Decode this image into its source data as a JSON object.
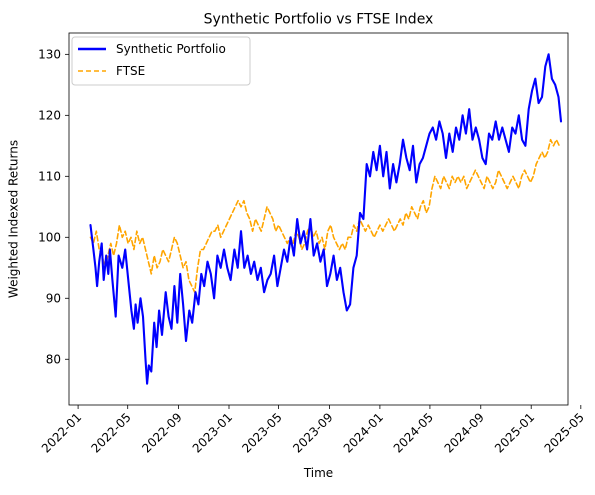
{
  "chart_data": {
    "type": "line",
    "title": "Synthetic Portfolio vs FTSE Index",
    "xlabel": "Time",
    "ylabel": "Weighted Indexed Returns",
    "xlim": [
      "2021-12-10",
      "2025-03-31"
    ],
    "ylim": [
      72.5,
      133.5
    ],
    "x_ticks": [
      "2022-01",
      "2022-05",
      "2022-09",
      "2023-01",
      "2023-05",
      "2023-09",
      "2024-01",
      "2024-05",
      "2024-09",
      "2025-01",
      "2025-05"
    ],
    "y_ticks": [
      80,
      90,
      100,
      110,
      120,
      130
    ],
    "legend_position": "top-left",
    "grid": false,
    "series": [
      {
        "name": "Synthetic Portfolio",
        "color": "#0000ff",
        "style": "solid",
        "x": [
          "2022-01-31",
          "2022-02-07",
          "2022-02-12",
          "2022-02-16",
          "2022-02-21",
          "2022-02-27",
          "2022-03-04",
          "2022-03-10",
          "2022-03-15",
          "2022-03-19",
          "2022-03-25",
          "2022-04-02",
          "2022-04-09",
          "2022-04-18",
          "2022-04-25",
          "2022-05-04",
          "2022-05-10",
          "2022-05-16",
          "2022-05-20",
          "2022-05-25",
          "2022-06-01",
          "2022-06-07",
          "2022-06-13",
          "2022-06-17",
          "2022-06-21",
          "2022-06-27",
          "2022-07-04",
          "2022-07-10",
          "2022-07-16",
          "2022-07-23",
          "2022-08-01",
          "2022-08-08",
          "2022-08-15",
          "2022-08-22",
          "2022-08-29",
          "2022-09-05",
          "2022-09-12",
          "2022-09-19",
          "2022-09-27",
          "2022-10-04",
          "2022-10-12",
          "2022-10-19",
          "2022-10-26",
          "2022-11-02",
          "2022-11-10",
          "2022-11-18",
          "2022-11-26",
          "2022-12-04",
          "2022-12-12",
          "2022-12-20",
          "2022-12-28",
          "2023-01-05",
          "2023-01-14",
          "2023-01-22",
          "2023-01-30",
          "2023-02-07",
          "2023-02-15",
          "2023-02-23",
          "2023-03-03",
          "2023-03-11",
          "2023-03-19",
          "2023-03-27",
          "2023-04-04",
          "2023-04-12",
          "2023-04-20",
          "2023-04-28",
          "2023-05-06",
          "2023-05-14",
          "2023-05-22",
          "2023-05-30",
          "2023-06-07",
          "2023-06-15",
          "2023-06-23",
          "2023-07-01",
          "2023-07-09",
          "2023-07-17",
          "2023-07-25",
          "2023-08-02",
          "2023-08-10",
          "2023-08-18",
          "2023-08-26",
          "2023-09-03",
          "2023-09-11",
          "2023-09-19",
          "2023-09-27",
          "2023-10-05",
          "2023-10-13",
          "2023-10-21",
          "2023-10-29",
          "2023-11-06",
          "2023-11-14",
          "2023-11-22",
          "2023-11-30",
          "2023-12-08",
          "2023-12-16",
          "2023-12-24",
          "2024-01-01",
          "2024-01-09",
          "2024-01-17",
          "2024-01-25",
          "2024-02-02",
          "2024-02-10",
          "2024-02-18",
          "2024-02-26",
          "2024-03-05",
          "2024-03-13",
          "2024-03-21",
          "2024-03-29",
          "2024-04-06",
          "2024-04-14",
          "2024-04-22",
          "2024-04-30",
          "2024-05-08",
          "2024-05-16",
          "2024-05-24",
          "2024-06-01",
          "2024-06-09",
          "2024-06-17",
          "2024-06-25",
          "2024-07-03",
          "2024-07-11",
          "2024-07-19",
          "2024-07-27",
          "2024-08-04",
          "2024-08-12",
          "2024-08-20",
          "2024-08-28",
          "2024-09-05",
          "2024-09-13",
          "2024-09-21",
          "2024-09-29",
          "2024-10-07",
          "2024-10-15",
          "2024-10-23",
          "2024-10-31",
          "2024-11-08",
          "2024-11-16",
          "2024-11-24",
          "2024-12-02",
          "2024-12-10",
          "2024-12-18",
          "2024-12-26",
          "2025-01-03",
          "2025-01-11",
          "2025-01-19",
          "2025-01-27",
          "2025-02-04",
          "2025-02-12",
          "2025-02-20",
          "2025-02-28",
          "2025-03-08",
          "2025-03-14"
        ],
        "y": [
          102,
          98,
          95,
          92,
          96,
          99,
          93,
          97,
          94,
          98,
          93,
          87,
          97,
          95,
          98,
          92,
          88,
          85,
          89,
          86,
          90,
          87,
          80,
          76,
          79,
          78,
          86,
          82,
          88,
          84,
          91,
          87,
          85,
          92,
          86,
          94,
          89,
          83,
          88,
          86,
          91,
          89,
          94,
          92,
          96,
          94,
          90,
          97,
          95,
          98,
          95,
          93,
          98,
          95,
          101,
          95,
          97,
          94,
          96,
          93,
          95,
          91,
          93,
          94,
          97,
          92,
          95,
          98,
          96,
          100,
          97,
          103,
          99,
          101,
          98,
          103,
          97,
          99,
          96,
          98,
          92,
          94,
          97,
          93,
          95,
          91,
          88,
          89,
          95,
          97,
          104,
          103,
          112,
          110,
          114,
          111,
          115,
          110,
          114,
          108,
          112,
          109,
          112,
          116,
          113,
          111,
          115,
          109,
          112,
          113,
          115,
          117,
          118,
          116,
          119,
          117,
          113,
          117,
          114,
          118,
          116,
          120,
          117,
          121,
          116,
          118,
          116,
          113,
          112,
          117,
          116,
          119,
          116,
          118,
          116,
          114,
          118,
          117,
          120,
          116,
          115,
          121,
          124,
          126,
          122,
          123,
          128,
          130,
          126,
          125,
          123,
          119
        ]
      },
      {
        "name": "FTSE",
        "color": "#ffa500",
        "style": "dashed",
        "x": [
          "2022-01-31",
          "2022-02-07",
          "2022-02-14",
          "2022-02-21",
          "2022-02-28",
          "2022-03-07",
          "2022-03-14",
          "2022-03-21",
          "2022-03-28",
          "2022-04-04",
          "2022-04-11",
          "2022-04-18",
          "2022-04-25",
          "2022-05-02",
          "2022-05-09",
          "2022-05-16",
          "2022-05-23",
          "2022-05-30",
          "2022-06-06",
          "2022-06-13",
          "2022-06-20",
          "2022-06-27",
          "2022-07-04",
          "2022-07-11",
          "2022-07-18",
          "2022-07-25",
          "2022-08-01",
          "2022-08-08",
          "2022-08-15",
          "2022-08-22",
          "2022-08-29",
          "2022-09-05",
          "2022-09-12",
          "2022-09-19",
          "2022-09-26",
          "2022-10-03",
          "2022-10-10",
          "2022-10-17",
          "2022-10-24",
          "2022-10-31",
          "2022-11-07",
          "2022-11-14",
          "2022-11-21",
          "2022-11-28",
          "2022-12-05",
          "2022-12-12",
          "2022-12-19",
          "2022-12-26",
          "2023-01-02",
          "2023-01-09",
          "2023-01-16",
          "2023-01-23",
          "2023-01-30",
          "2023-02-06",
          "2023-02-13",
          "2023-02-20",
          "2023-02-27",
          "2023-03-06",
          "2023-03-13",
          "2023-03-20",
          "2023-03-27",
          "2023-04-03",
          "2023-04-10",
          "2023-04-17",
          "2023-04-24",
          "2023-05-01",
          "2023-05-08",
          "2023-05-15",
          "2023-05-22",
          "2023-05-29",
          "2023-06-05",
          "2023-06-12",
          "2023-06-19",
          "2023-06-26",
          "2023-07-03",
          "2023-07-10",
          "2023-07-17",
          "2023-07-24",
          "2023-07-31",
          "2023-08-07",
          "2023-08-14",
          "2023-08-21",
          "2023-08-28",
          "2023-09-04",
          "2023-09-11",
          "2023-09-18",
          "2023-09-25",
          "2023-10-02",
          "2023-10-09",
          "2023-10-16",
          "2023-10-23",
          "2023-10-30",
          "2023-11-06",
          "2023-11-13",
          "2023-11-20",
          "2023-11-27",
          "2023-12-04",
          "2023-12-11",
          "2023-12-18",
          "2023-12-25",
          "2024-01-01",
          "2024-01-08",
          "2024-01-15",
          "2024-01-22",
          "2024-01-29",
          "2024-02-05",
          "2024-02-12",
          "2024-02-19",
          "2024-02-26",
          "2024-03-04",
          "2024-03-11",
          "2024-03-18",
          "2024-03-25",
          "2024-04-01",
          "2024-04-08",
          "2024-04-15",
          "2024-04-22",
          "2024-04-29",
          "2024-05-06",
          "2024-05-13",
          "2024-05-20",
          "2024-05-27",
          "2024-06-03",
          "2024-06-10",
          "2024-06-17",
          "2024-06-24",
          "2024-07-01",
          "2024-07-08",
          "2024-07-15",
          "2024-07-22",
          "2024-07-29",
          "2024-08-05",
          "2024-08-12",
          "2024-08-19",
          "2024-08-26",
          "2024-09-02",
          "2024-09-09",
          "2024-09-16",
          "2024-09-23",
          "2024-09-30",
          "2024-10-07",
          "2024-10-14",
          "2024-10-21",
          "2024-10-28",
          "2024-11-04",
          "2024-11-11",
          "2024-11-18",
          "2024-11-25",
          "2024-12-02",
          "2024-12-09",
          "2024-12-16",
          "2024-12-23",
          "2024-12-30",
          "2025-01-06",
          "2025-01-13",
          "2025-01-20",
          "2025-01-27",
          "2025-02-03",
          "2025-02-10",
          "2025-02-17",
          "2025-02-24",
          "2025-03-03",
          "2025-03-10",
          "2025-03-14"
        ],
        "y": [
          100,
          99,
          101,
          98,
          97,
          95,
          97,
          99,
          97,
          99,
          102,
          100,
          101,
          99,
          100,
          98,
          101,
          99,
          100,
          98,
          96,
          94,
          97,
          95,
          96,
          98,
          97,
          96,
          98,
          100,
          99,
          97,
          95,
          96,
          93,
          92,
          91,
          95,
          98,
          98,
          99,
          100,
          101,
          101,
          102,
          100,
          101,
          102,
          103,
          104,
          105,
          106,
          105,
          106,
          104,
          103,
          101,
          103,
          102,
          101,
          103,
          105,
          104,
          103,
          101,
          102,
          101,
          100,
          99,
          100,
          99,
          101,
          100,
          98,
          99,
          101,
          102,
          100,
          101,
          99,
          100,
          98,
          101,
          102,
          100,
          99,
          98,
          99,
          98,
          100,
          100,
          102,
          101,
          103,
          102,
          101,
          102,
          101,
          100,
          101,
          102,
          101,
          102,
          103,
          102,
          101,
          102,
          103,
          102,
          104,
          103,
          105,
          104,
          103,
          105,
          106,
          104,
          105,
          108,
          110,
          109,
          108,
          110,
          109,
          108,
          110,
          109,
          110,
          109,
          110,
          108,
          109,
          110,
          111,
          110,
          109,
          108,
          110,
          109,
          108,
          109,
          111,
          110,
          109,
          108,
          109,
          110,
          109,
          108,
          110,
          111,
          110,
          109,
          110,
          112,
          113,
          114,
          113,
          114,
          116,
          115,
          116,
          115,
          115
        ]
      }
    ]
  }
}
